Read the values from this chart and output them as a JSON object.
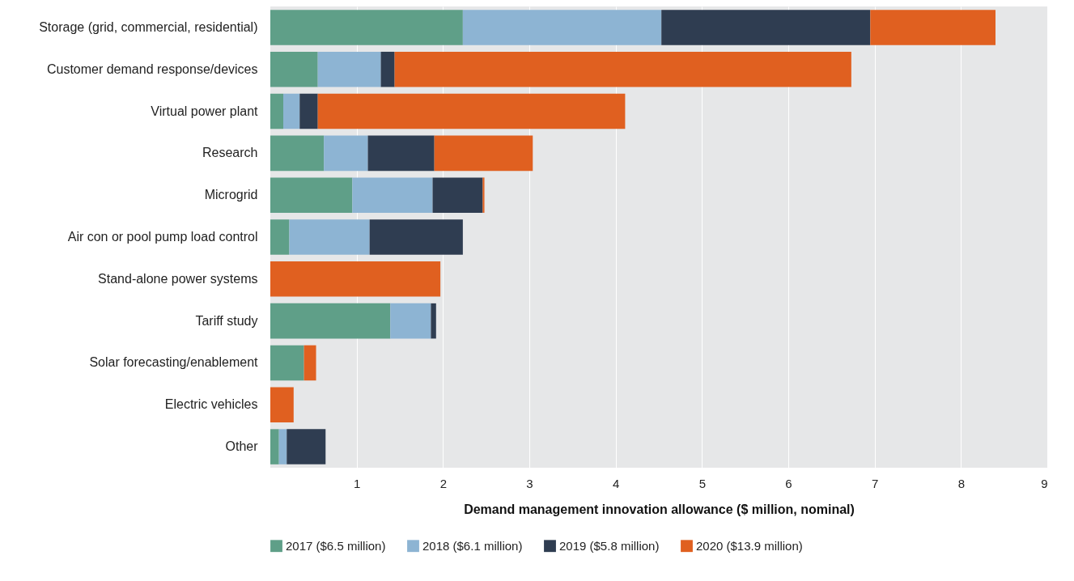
{
  "chart_data": {
    "type": "bar",
    "orientation": "horizontal",
    "stacked": true,
    "xlabel": "Demand management innovation allowance ($ million, nominal)",
    "categories": [
      "Storage (grid, commercial, residential)",
      "Customer demand response/devices",
      "Virtual power plant",
      "Research",
      "Microgrid",
      "Air con or pool pump load control",
      "Stand-alone power systems",
      "Tariff study",
      "Solar forecasting/enablement",
      "Electric vehicles",
      "Other"
    ],
    "series": [
      {
        "name": "2017 ($6.5 million)",
        "color": "#5f9f88",
        "values": [
          2.23,
          0.55,
          0.15,
          0.62,
          0.95,
          0.22,
          null,
          1.39,
          0.39,
          null,
          0.1
        ]
      },
      {
        "name": "2018 ($6.1 million)",
        "color": "#8db4d3",
        "values": [
          2.3,
          0.73,
          0.19,
          0.51,
          0.93,
          0.93,
          null,
          0.47,
          null,
          null,
          0.09
        ]
      },
      {
        "name": "2019 ($5.8 million)",
        "color": "#2f3d51",
        "values": [
          2.42,
          0.16,
          0.21,
          0.77,
          0.58,
          1.08,
          null,
          0.06,
          null,
          null,
          0.45
        ]
      },
      {
        "name": "2020 ($13.9 million)",
        "color": "#e06020",
        "values": [
          1.45,
          5.29,
          3.56,
          1.14,
          0.02,
          null,
          1.97,
          null,
          0.14,
          0.27,
          null
        ]
      }
    ],
    "xlim": [
      0,
      9
    ],
    "xticks": [
      1,
      2,
      3,
      4,
      5,
      6,
      7,
      8,
      9
    ],
    "grid": "x",
    "legend": "bottom"
  }
}
